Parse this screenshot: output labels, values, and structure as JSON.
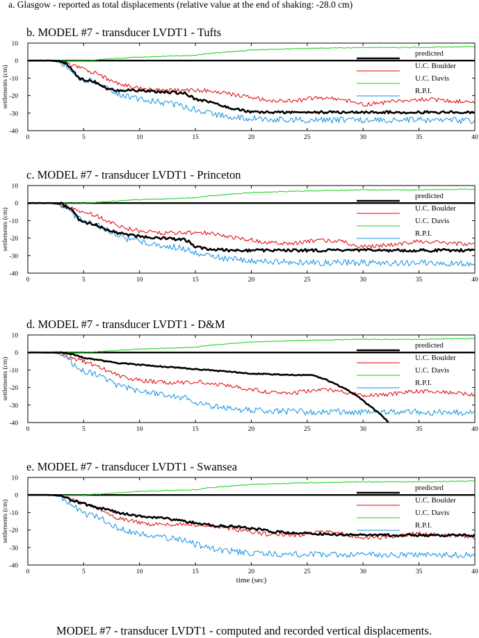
{
  "header_note": "a. Glasgow - reported as total displacements (relative value at the end of shaking: -28.0 cm)",
  "figure_caption": "MODEL #7 - transducer LVDT1 - computed and recorded vertical displacements.",
  "colors": {
    "predicted": "#000000",
    "boulder": "#e00000",
    "davis": "#10d010",
    "rpi": "#1090e0",
    "axis": "#000000"
  },
  "chart_data": [
    {
      "type": "line",
      "title": "b. MODEL #7 - transducer LVDT1 - Tufts",
      "xlabel": "",
      "ylabel": "settlements (cm)",
      "xlim": [
        0,
        40
      ],
      "ylim": [
        -40,
        10
      ],
      "xticks": [
        "0",
        "5",
        "10",
        "15",
        "20",
        "25",
        "30",
        "35",
        "40"
      ],
      "yticks": [
        "10",
        "0",
        "-10",
        "-20",
        "-30",
        "-40"
      ],
      "legend": [
        "predicted",
        "U.C. Boulder",
        "U.C. Davis",
        "R.P.I."
      ],
      "series": [
        {
          "name": "predicted",
          "key": "predicted",
          "width": 2.6,
          "noise": 0.7,
          "x": [
            0,
            2,
            3,
            3.5,
            4,
            4.5,
            5,
            6,
            7,
            8,
            10,
            12,
            14,
            14.5,
            15,
            16,
            17,
            18,
            19,
            20,
            22,
            25,
            30,
            35,
            40
          ],
          "y": [
            0,
            0,
            -0.5,
            -2,
            -5,
            -10,
            -11,
            -12,
            -16,
            -17,
            -17,
            -18,
            -18.5,
            -20,
            -22,
            -23,
            -25,
            -27,
            -28,
            -29.5,
            -29.5,
            -29.5,
            -29.5,
            -29.5,
            -29.5
          ]
        },
        {
          "name": "U.C. Boulder",
          "key": "boulder",
          "width": 1,
          "noise": 1.2,
          "x": [
            0,
            2,
            3,
            4,
            5,
            6,
            7,
            8,
            10,
            12,
            14,
            16,
            18,
            20,
            22,
            24,
            26,
            28,
            30,
            32,
            35,
            38,
            40
          ],
          "y": [
            0,
            0,
            -1,
            -3,
            -5,
            -7,
            -10,
            -13,
            -16,
            -17,
            -17,
            -17,
            -19,
            -21,
            -23,
            -23,
            -21,
            -22,
            -25,
            -24,
            -22,
            -23,
            -24
          ]
        },
        {
          "name": "U.C. Davis",
          "key": "davis",
          "width": 1,
          "noise": 0.25,
          "x": [
            0,
            5,
            10,
            15,
            16,
            20,
            25,
            30,
            35,
            40
          ],
          "y": [
            0,
            0,
            2,
            3,
            4,
            6,
            7,
            7.5,
            7.5,
            8
          ]
        },
        {
          "name": "R.P.I.",
          "key": "rpi",
          "width": 1,
          "noise": 1.8,
          "x": [
            0,
            2,
            3,
            4,
            5,
            6,
            7,
            8,
            10,
            12,
            14,
            16,
            18,
            20,
            22,
            25,
            30,
            35,
            40
          ],
          "y": [
            0,
            0,
            -1,
            -6,
            -11,
            -12,
            -15,
            -19,
            -22,
            -24,
            -26,
            -30,
            -32,
            -33,
            -33.5,
            -34,
            -34,
            -34,
            -34.5
          ]
        }
      ]
    },
    {
      "type": "line",
      "title": "c. MODEL #7 - transducer LVDT1 - Princeton",
      "xlabel": "",
      "ylabel": "settlements (cm)",
      "xlim": [
        0,
        40
      ],
      "ylim": [
        -40,
        10
      ],
      "xticks": [
        "0",
        "5",
        "10",
        "15",
        "20",
        "25",
        "30",
        "35",
        "40"
      ],
      "yticks": [
        "10",
        "0",
        "-10",
        "-20",
        "-30",
        "-40"
      ],
      "legend": [
        "predicted",
        "U.C. Boulder",
        "U.C. Davis",
        "R.P.I."
      ],
      "series": [
        {
          "name": "predicted",
          "key": "predicted",
          "width": 2.6,
          "noise": 0.8,
          "x": [
            0,
            2,
            3,
            4,
            4.5,
            5,
            6,
            7,
            8,
            10,
            12,
            14,
            14.5,
            15,
            16,
            18,
            20,
            25,
            30,
            35,
            40
          ],
          "y": [
            0,
            0,
            -0.5,
            -4,
            -9,
            -11,
            -12,
            -15,
            -17,
            -19,
            -20,
            -21,
            -22,
            -25,
            -26,
            -27,
            -27,
            -27,
            -27,
            -27,
            -27
          ]
        },
        {
          "name": "U.C. Boulder",
          "key": "boulder",
          "width": 1,
          "noise": 1.2,
          "x": [
            0,
            2,
            3,
            4,
            5,
            6,
            7,
            8,
            10,
            12,
            14,
            16,
            18,
            20,
            22,
            24,
            26,
            28,
            30,
            32,
            35,
            38,
            40
          ],
          "y": [
            0,
            0,
            -1,
            -3,
            -5,
            -7,
            -10,
            -13,
            -16,
            -17,
            -17,
            -17,
            -19,
            -21,
            -23,
            -23,
            -21,
            -22,
            -25,
            -24,
            -22,
            -23,
            -24
          ]
        },
        {
          "name": "U.C. Davis",
          "key": "davis",
          "width": 1,
          "noise": 0.25,
          "x": [
            0,
            5,
            10,
            15,
            16,
            20,
            25,
            30,
            35,
            40
          ],
          "y": [
            0,
            0,
            2,
            3,
            4,
            6,
            7,
            7.5,
            7.5,
            8
          ]
        },
        {
          "name": "R.P.I.",
          "key": "rpi",
          "width": 1,
          "noise": 1.8,
          "x": [
            0,
            2,
            3,
            4,
            5,
            6,
            7,
            8,
            10,
            12,
            14,
            16,
            18,
            20,
            22,
            25,
            30,
            35,
            40
          ],
          "y": [
            0,
            0,
            -1,
            -6,
            -11,
            -12,
            -15,
            -19,
            -22,
            -24,
            -26,
            -30,
            -32,
            -33,
            -33.5,
            -34,
            -34,
            -34,
            -34.5
          ]
        }
      ]
    },
    {
      "type": "line",
      "title": "d. MODEL #7 - transducer LVDT1 - D&M",
      "xlabel": "",
      "ylabel": "settlements (cm)",
      "xlim": [
        0,
        40
      ],
      "ylim": [
        -40,
        10
      ],
      "xticks": [
        "0",
        "5",
        "10",
        "15",
        "20",
        "25",
        "30",
        "35",
        "40"
      ],
      "yticks": [
        "10",
        "0",
        "-10",
        "-20",
        "-30",
        "-40"
      ],
      "legend": [
        "predicted",
        "U.C. Boulder",
        "U.C. Davis",
        "R.P.I."
      ],
      "series": [
        {
          "name": "predicted",
          "key": "predicted",
          "width": 2.6,
          "noise": 0.3,
          "x": [
            0,
            3,
            4,
            5,
            6,
            8,
            10,
            12,
            14,
            16,
            18,
            20,
            22,
            24,
            25.5,
            26.5,
            27.5,
            28.5,
            29.5,
            30.5,
            31.5,
            32.3
          ],
          "y": [
            0,
            0,
            -1,
            -3,
            -4,
            -6,
            -7,
            -8,
            -9,
            -10,
            -11,
            -12,
            -12.5,
            -12.8,
            -13,
            -15,
            -18,
            -21,
            -25,
            -30,
            -35,
            -40
          ]
        },
        {
          "name": "U.C. Boulder",
          "key": "boulder",
          "width": 1,
          "noise": 1.2,
          "x": [
            0,
            2,
            3,
            4,
            5,
            6,
            7,
            8,
            10,
            12,
            14,
            16,
            18,
            20,
            22,
            24,
            26,
            28,
            30,
            32,
            35,
            38,
            40
          ],
          "y": [
            0,
            0,
            -1,
            -3,
            -5,
            -7,
            -10,
            -13,
            -16,
            -17,
            -17,
            -17,
            -19,
            -21,
            -23,
            -23,
            -21,
            -22,
            -25,
            -24,
            -22,
            -23,
            -24
          ]
        },
        {
          "name": "U.C. Davis",
          "key": "davis",
          "width": 1,
          "noise": 0.25,
          "x": [
            0,
            5,
            10,
            15,
            16,
            20,
            25,
            30,
            35,
            40
          ],
          "y": [
            0,
            0,
            2,
            3,
            4,
            6,
            7,
            7.5,
            7.5,
            8
          ]
        },
        {
          "name": "R.P.I.",
          "key": "rpi",
          "width": 1,
          "noise": 1.8,
          "x": [
            0,
            2,
            3,
            4,
            5,
            6,
            7,
            8,
            10,
            12,
            14,
            16,
            18,
            20,
            22,
            25,
            30,
            35,
            40
          ],
          "y": [
            0,
            0,
            -1,
            -6,
            -11,
            -12,
            -15,
            -19,
            -22,
            -24,
            -26,
            -30,
            -32,
            -33,
            -33.5,
            -34,
            -34,
            -34,
            -34.5
          ]
        }
      ]
    },
    {
      "type": "line",
      "title": "e. MODEL #7 - transducer LVDT1 - Swansea",
      "xlabel": "time (sec)",
      "ylabel": "settlements (cm)",
      "xlim": [
        0,
        40
      ],
      "ylim": [
        -40,
        10
      ],
      "xticks": [
        "0",
        "5",
        "10",
        "15",
        "20",
        "25",
        "30",
        "35",
        "40"
      ],
      "yticks": [
        "10",
        "0",
        "-10",
        "-20",
        "-30",
        "-40"
      ],
      "legend": [
        "predicted",
        "U.C. Boulder",
        "U.C. Davis",
        "R.P.I."
      ],
      "series": [
        {
          "name": "predicted",
          "key": "predicted",
          "width": 2.6,
          "noise": 0.7,
          "x": [
            0,
            2,
            3,
            4,
            5,
            6,
            7,
            8,
            10,
            12,
            14,
            16,
            18,
            20,
            22,
            25,
            28,
            30,
            35,
            40
          ],
          "y": [
            0,
            0,
            -0.5,
            -3,
            -5,
            -7,
            -8,
            -10,
            -12,
            -13,
            -15,
            -17,
            -18,
            -19,
            -21,
            -22,
            -22.5,
            -23,
            -23,
            -23
          ]
        },
        {
          "name": "U.C. Boulder",
          "key": "boulder",
          "width": 1,
          "noise": 1.2,
          "x": [
            0,
            2,
            3,
            4,
            5,
            6,
            7,
            8,
            10,
            12,
            14,
            16,
            18,
            20,
            22,
            24,
            26,
            28,
            30,
            32,
            35,
            38,
            40
          ],
          "y": [
            0,
            0,
            -1,
            -3,
            -5,
            -7,
            -10,
            -13,
            -16,
            -17,
            -17,
            -17,
            -19,
            -21,
            -23,
            -23,
            -21,
            -22,
            -25,
            -24,
            -22,
            -23,
            -24
          ]
        },
        {
          "name": "U.C. Davis",
          "key": "davis",
          "width": 1,
          "noise": 0.25,
          "x": [
            0,
            5,
            10,
            15,
            16,
            20,
            25,
            30,
            35,
            40
          ],
          "y": [
            0,
            0,
            2,
            3,
            4,
            6,
            7,
            7.5,
            7.5,
            8
          ]
        },
        {
          "name": "R.P.I.",
          "key": "rpi",
          "width": 1,
          "noise": 1.8,
          "x": [
            0,
            2,
            3,
            4,
            5,
            6,
            7,
            8,
            10,
            12,
            14,
            16,
            18,
            20,
            22,
            25,
            30,
            35,
            40
          ],
          "y": [
            0,
            0,
            -1,
            -6,
            -11,
            -12,
            -15,
            -19,
            -22,
            -24,
            -26,
            -30,
            -32,
            -33,
            -33.5,
            -34,
            -34,
            -34,
            -34.5
          ]
        }
      ]
    }
  ]
}
